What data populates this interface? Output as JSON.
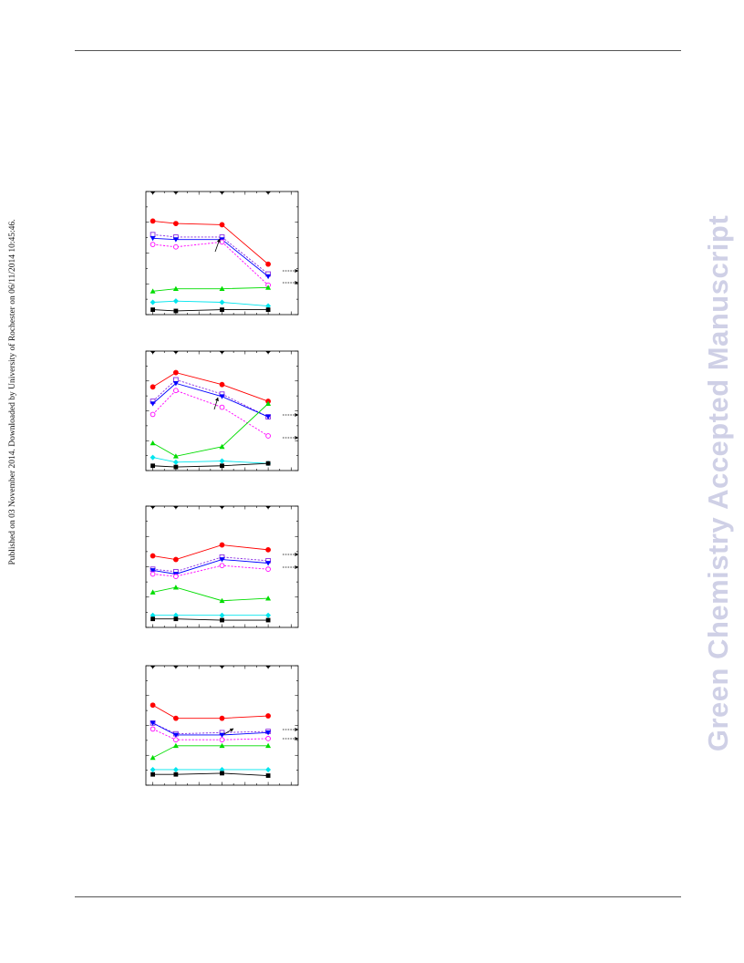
{
  "sidebar_note": "Published on 03 November 2014. Downloaded by University of Rochester on 06/11/2014 10:45:46.",
  "watermark": "Green Chemistry Accepted Manuscript",
  "colors": {
    "black": "#000000",
    "red": "#ff0000",
    "blue": "#0000ff",
    "violet": "#8a2be2",
    "magenta": "#ff00ff",
    "green": "#00dd00",
    "cyan": "#00e5ee",
    "rule": "#555555",
    "watermark": "#cfd0e6"
  },
  "chart_data": [
    {
      "type": "line",
      "x": [
        0,
        1,
        3,
        5
      ],
      "xlim": [
        -0.3,
        6.3
      ],
      "ylim": [
        0,
        1
      ],
      "grid": false,
      "series": [
        {
          "color": "red",
          "marker": "circle-filled",
          "line": "solid",
          "values": [
            0.76,
            0.74,
            0.73,
            0.41
          ]
        },
        {
          "color": "violet",
          "marker": "square-open",
          "line": "dashed",
          "values": [
            0.65,
            0.63,
            0.63,
            0.33
          ]
        },
        {
          "color": "blue",
          "marker": "triangle-down-filled",
          "line": "solid",
          "values": [
            0.62,
            0.61,
            0.61,
            0.31
          ]
        },
        {
          "color": "magenta",
          "marker": "circle-open",
          "line": "dashed",
          "values": [
            0.57,
            0.55,
            0.59,
            0.24
          ]
        },
        {
          "color": "green",
          "marker": "triangle-up-filled",
          "line": "solid",
          "values": [
            0.19,
            0.21,
            0.21,
            0.22
          ]
        },
        {
          "color": "cyan",
          "marker": "diamond-filled",
          "line": "solid",
          "values": [
            0.1,
            0.11,
            0.1,
            0.07
          ]
        },
        {
          "color": "black",
          "marker": "square-filled",
          "line": "solid",
          "values": [
            0.04,
            0.03,
            0.04,
            0.04
          ]
        }
      ],
      "annotations": [
        "arrow",
        "dashed-arrow",
        "dashed-arrow"
      ]
    },
    {
      "type": "line",
      "x": [
        0,
        1,
        3,
        5
      ],
      "xlim": [
        -0.3,
        6.3
      ],
      "ylim": [
        0,
        1
      ],
      "grid": false,
      "series": [
        {
          "color": "red",
          "marker": "circle-filled",
          "line": "solid",
          "values": [
            0.7,
            0.82,
            0.72,
            0.58
          ]
        },
        {
          "color": "violet",
          "marker": "square-open",
          "line": "dashed",
          "values": [
            0.58,
            0.76,
            0.64,
            0.45
          ]
        },
        {
          "color": "blue",
          "marker": "triangle-down-filled",
          "line": "solid",
          "values": [
            0.56,
            0.73,
            0.62,
            0.45
          ]
        },
        {
          "color": "magenta",
          "marker": "circle-open",
          "line": "dashed",
          "values": [
            0.47,
            0.67,
            0.53,
            0.29
          ]
        },
        {
          "color": "green",
          "marker": "triangle-up-filled",
          "line": "solid",
          "values": [
            0.23,
            0.12,
            0.2,
            0.56
          ]
        },
        {
          "color": "cyan",
          "marker": "diamond-filled",
          "line": "solid",
          "values": [
            0.11,
            0.07,
            0.08,
            0.06
          ]
        },
        {
          "color": "black",
          "marker": "square-filled",
          "line": "solid",
          "values": [
            0.04,
            0.03,
            0.04,
            0.06
          ]
        }
      ],
      "annotations": [
        "arrow",
        "dashed-arrow",
        "dashed-arrow"
      ]
    },
    {
      "type": "line",
      "x": [
        0,
        1,
        3,
        5
      ],
      "xlim": [
        -0.3,
        6.3
      ],
      "ylim": [
        0,
        1
      ],
      "grid": false,
      "series": [
        {
          "color": "red",
          "marker": "circle-filled",
          "line": "solid",
          "values": [
            0.59,
            0.56,
            0.68,
            0.64
          ]
        },
        {
          "color": "violet",
          "marker": "square-open",
          "line": "dashed",
          "values": [
            0.48,
            0.46,
            0.58,
            0.55
          ]
        },
        {
          "color": "blue",
          "marker": "triangle-down-filled",
          "line": "solid",
          "values": [
            0.47,
            0.44,
            0.56,
            0.53
          ]
        },
        {
          "color": "magenta",
          "marker": "circle-open",
          "line": "dashed",
          "values": [
            0.44,
            0.42,
            0.51,
            0.48
          ]
        },
        {
          "color": "green",
          "marker": "triangle-up-filled",
          "line": "solid",
          "values": [
            0.29,
            0.33,
            0.22,
            0.24
          ]
        },
        {
          "color": "cyan",
          "marker": "diamond-filled",
          "line": "solid",
          "values": [
            0.1,
            0.1,
            0.1,
            0.1
          ]
        },
        {
          "color": "black",
          "marker": "square-filled",
          "line": "solid",
          "values": [
            0.07,
            0.07,
            0.06,
            0.06
          ]
        }
      ],
      "annotations": [
        "dashed-arrow",
        "dashed-arrow"
      ]
    },
    {
      "type": "line",
      "x": [
        0,
        1,
        3,
        5
      ],
      "xlim": [
        -0.3,
        6.3
      ],
      "ylim": [
        0,
        1
      ],
      "grid": false,
      "series": [
        {
          "color": "red",
          "marker": "circle-filled",
          "line": "solid",
          "values": [
            0.67,
            0.56,
            0.56,
            0.58
          ]
        },
        {
          "color": "violet",
          "marker": "square-open",
          "line": "dashed",
          "values": [
            0.52,
            0.43,
            0.44,
            0.45
          ]
        },
        {
          "color": "blue",
          "marker": "triangle-down-filled",
          "line": "solid",
          "values": [
            0.52,
            0.42,
            0.42,
            0.44
          ]
        },
        {
          "color": "magenta",
          "marker": "circle-open",
          "line": "dashed",
          "values": [
            0.47,
            0.38,
            0.38,
            0.39
          ]
        },
        {
          "color": "green",
          "marker": "triangle-up-filled",
          "line": "solid",
          "values": [
            0.23,
            0.33,
            0.33,
            0.33
          ]
        },
        {
          "color": "cyan",
          "marker": "diamond-filled",
          "line": "solid",
          "values": [
            0.13,
            0.13,
            0.13,
            0.13
          ]
        },
        {
          "color": "black",
          "marker": "square-filled",
          "line": "solid",
          "values": [
            0.09,
            0.09,
            0.1,
            0.08
          ]
        }
      ],
      "annotations": [
        "arrow",
        "dashed-arrow",
        "dashed-arrow"
      ]
    }
  ]
}
